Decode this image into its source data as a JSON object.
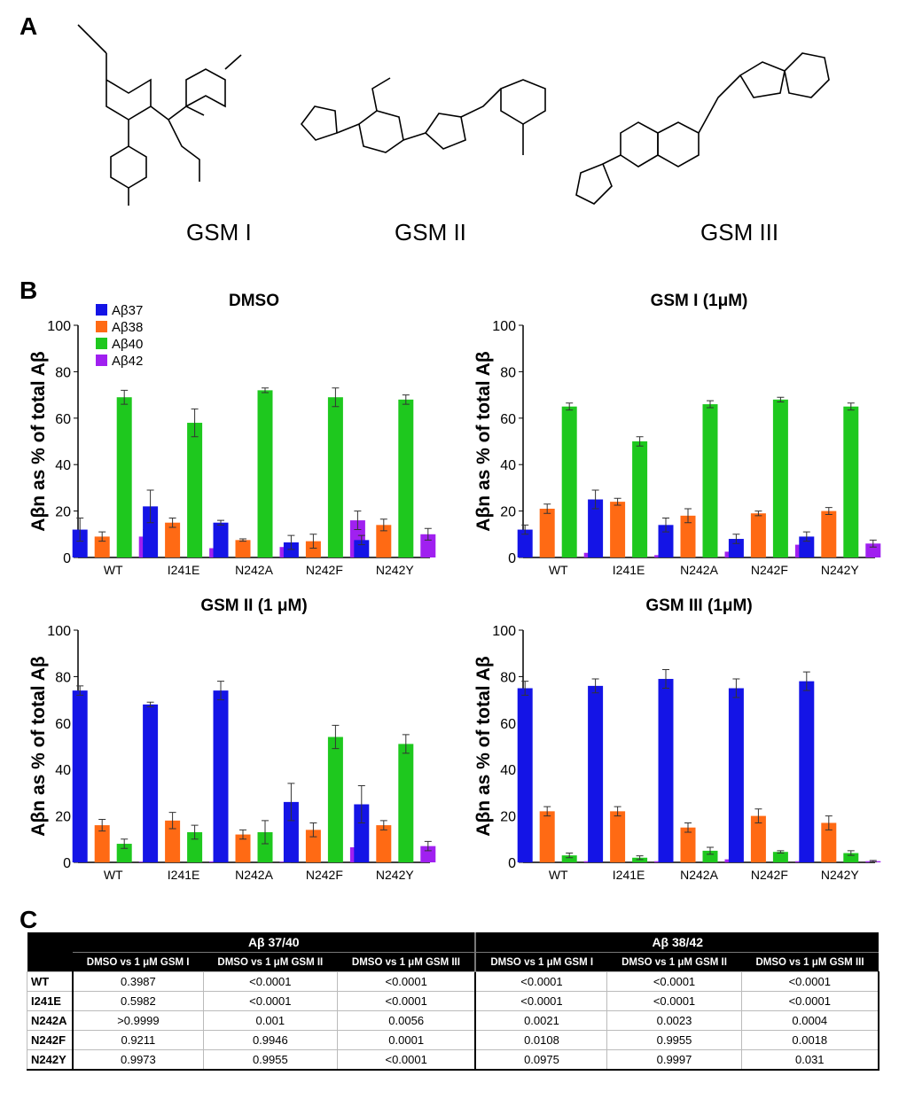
{
  "panels": {
    "a": "A",
    "b": "B",
    "c": "C"
  },
  "compounds": [
    "GSM I",
    "GSM II",
    "GSM III"
  ],
  "legend": [
    "Aβ37",
    "Aβ38",
    "Aβ40",
    "Aβ42"
  ],
  "colors": [
    "#1414e6",
    "#ff6a14",
    "#1ec81e",
    "#a020f0"
  ],
  "chart_data": [
    {
      "type": "bar",
      "title": "DMSO",
      "ylabel": "Aβn as % of total Aβ",
      "ylim": [
        0,
        100
      ],
      "yticks": [
        0,
        20,
        40,
        60,
        80,
        100
      ],
      "categories": [
        "WT",
        "I241E",
        "N242A",
        "N242F",
        "N242Y"
      ],
      "series": [
        {
          "name": "Aβ37",
          "values": [
            12,
            22,
            15,
            6.5,
            7.5
          ],
          "err": [
            5,
            7,
            1,
            3,
            2
          ]
        },
        {
          "name": "Aβ38",
          "values": [
            9,
            15,
            7.5,
            7,
            14
          ],
          "err": [
            2,
            2,
            0.5,
            3,
            2.5
          ]
        },
        {
          "name": "Aβ40",
          "values": [
            69,
            58,
            72,
            69,
            68
          ],
          "err": [
            3,
            6,
            1,
            4,
            2
          ]
        },
        {
          "name": "Aβ42",
          "values": [
            9,
            4,
            4.5,
            16,
            10
          ],
          "err": [
            3,
            1.5,
            0.3,
            4,
            2.5
          ]
        }
      ],
      "legend": "top-left"
    },
    {
      "type": "bar",
      "title": "GSM I (1μM)",
      "ylabel": "Aβn as % of total Aβ",
      "ylim": [
        0,
        100
      ],
      "yticks": [
        0,
        20,
        40,
        60,
        80,
        100
      ],
      "categories": [
        "WT",
        "I241E",
        "N242A",
        "N242F",
        "N242Y"
      ],
      "series": [
        {
          "name": "Aβ37",
          "values": [
            12,
            25,
            14,
            8,
            9
          ],
          "err": [
            2,
            4,
            3,
            2,
            2
          ]
        },
        {
          "name": "Aβ38",
          "values": [
            21,
            24,
            18,
            19,
            20
          ],
          "err": [
            2,
            1.5,
            3,
            1,
            1.5
          ]
        },
        {
          "name": "Aβ40",
          "values": [
            65,
            50,
            66,
            68,
            65
          ],
          "err": [
            1.5,
            2,
            1.5,
            1,
            1.5
          ]
        },
        {
          "name": "Aβ42",
          "values": [
            2,
            1,
            2.5,
            5.5,
            6
          ],
          "err": [
            1,
            0.5,
            0.5,
            1.5,
            1.5
          ]
        }
      ]
    },
    {
      "type": "bar",
      "title": "GSM II (1 μM)",
      "ylabel": "Aβn as % of total Aβ",
      "ylim": [
        0,
        100
      ],
      "yticks": [
        0,
        20,
        40,
        60,
        80,
        100
      ],
      "categories": [
        "WT",
        "I241E",
        "N242A",
        "N242F",
        "N242Y"
      ],
      "series": [
        {
          "name": "Aβ37",
          "values": [
            74,
            68,
            74,
            26,
            25
          ],
          "err": [
            2,
            1,
            4,
            8,
            8
          ]
        },
        {
          "name": "Aβ38",
          "values": [
            16,
            18,
            12,
            14,
            16
          ],
          "err": [
            2.5,
            3.5,
            2,
            3,
            2
          ]
        },
        {
          "name": "Aβ40",
          "values": [
            8,
            13,
            13,
            54,
            51
          ],
          "err": [
            2,
            3,
            5,
            5,
            4
          ]
        },
        {
          "name": "Aβ42",
          "values": [
            0.3,
            0.4,
            0.3,
            6.5,
            7
          ],
          "err": [
            0.2,
            0.2,
            0.2,
            1,
            2
          ]
        }
      ]
    },
    {
      "type": "bar",
      "title": "GSM III (1μM)",
      "ylabel": "Aβn as % of total Aβ",
      "ylim": [
        0,
        100
      ],
      "yticks": [
        0,
        20,
        40,
        60,
        80,
        100
      ],
      "categories": [
        "WT",
        "I241E",
        "N242A",
        "N242F",
        "N242Y"
      ],
      "series": [
        {
          "name": "Aβ37",
          "values": [
            75,
            76,
            79,
            75,
            78
          ],
          "err": [
            3,
            3,
            4,
            4,
            4
          ]
        },
        {
          "name": "Aβ38",
          "values": [
            22,
            22,
            15,
            20,
            17
          ],
          "err": [
            2,
            2,
            2,
            3,
            3
          ]
        },
        {
          "name": "Aβ40",
          "values": [
            3,
            2,
            5,
            4.5,
            4
          ],
          "err": [
            1,
            0.8,
            1.5,
            0.5,
            1
          ]
        },
        {
          "name": "Aβ42",
          "values": [
            0.5,
            0.5,
            1.3,
            0.5,
            0.5
          ],
          "err": [
            0.3,
            0.3,
            1,
            0.3,
            0.3
          ]
        }
      ]
    }
  ],
  "table": {
    "groups": [
      "Aβ 37/40",
      "Aβ 38/42"
    ],
    "columns": [
      "DMSO vs 1 μM GSM I",
      "DMSO vs 1 μM GSM II",
      "DMSO vs 1 μM GSM III",
      "DMSO vs 1 μM GSM I",
      "DMSO vs 1 μM GSM II",
      "DMSO vs 1 μM GSM III"
    ],
    "rows": [
      {
        "label": "WT",
        "values": [
          "0.3987",
          "<0.0001",
          "<0.0001",
          "<0.0001",
          "<0.0001",
          "<0.0001"
        ]
      },
      {
        "label": "I241E",
        "values": [
          "0.5982",
          "<0.0001",
          "<0.0001",
          "<0.0001",
          "<0.0001",
          "<0.0001"
        ]
      },
      {
        "label": "N242A",
        "values": [
          ">0.9999",
          "0.001",
          "0.0056",
          "0.0021",
          "0.0023",
          "0.0004"
        ]
      },
      {
        "label": "N242F",
        "values": [
          "0.9211",
          "0.9946",
          "0.0001",
          "0.0108",
          "0.9955",
          "0.0018"
        ]
      },
      {
        "label": "N242Y",
        "values": [
          "0.9973",
          "0.9955",
          "<0.0001",
          "0.0975",
          "0.9997",
          "0.031"
        ]
      }
    ]
  }
}
